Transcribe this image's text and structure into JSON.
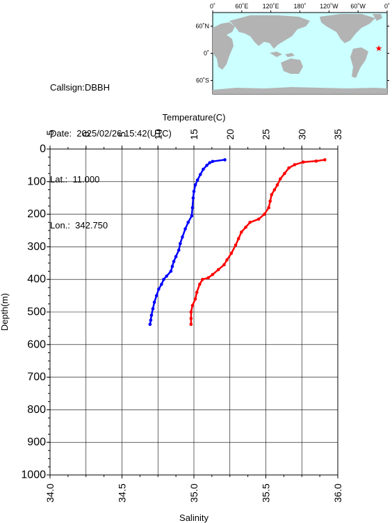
{
  "header": {
    "callsign": "Callsign:DBBH",
    "date": "Date:  2025/02/26 15:42(UTC)",
    "lat": "Lat.:  11.000",
    "lon": "Lon.:  342.750"
  },
  "map": {
    "lon_ticks": [
      "0˚",
      "60˚E",
      "120˚E",
      "180˚",
      "120˚W",
      "60˚W",
      "0˚"
    ],
    "lat_ticks": [
      "60˚N",
      "0˚",
      "60˚S"
    ],
    "ocean_color": "#ccffff",
    "land_color": "#b3b3b3",
    "marker_color": "#ff0000",
    "station": {
      "lon": 342.75,
      "lat": 11.0
    }
  },
  "chart_data": {
    "type": "scatter",
    "top_axis": {
      "label": "Temperature(C)",
      "range": [
        -5,
        35
      ],
      "ticks": [
        "-5",
        "0",
        "5",
        "10",
        "15",
        "20",
        "25",
        "30",
        "35"
      ]
    },
    "bottom_axis": {
      "label": "Salinity",
      "range": [
        34.0,
        36.0
      ],
      "ticks": [
        "34.0",
        "34.5",
        "35.0",
        "35.5",
        "36.0"
      ]
    },
    "left_axis": {
      "label": "Depth(m)",
      "range": [
        0,
        1000
      ],
      "inverted": true,
      "ticks": [
        "0",
        "100",
        "200",
        "300",
        "400",
        "500",
        "600",
        "700",
        "800",
        "900",
        "1000"
      ]
    },
    "grid": true,
    "series": [
      {
        "color": "#0000ff",
        "axis": "temperature",
        "points": [
          [
            19.3,
            33
          ],
          [
            17.6,
            38
          ],
          [
            17.2,
            42
          ],
          [
            16.8,
            50
          ],
          [
            16.3,
            62
          ],
          [
            15.9,
            78
          ],
          [
            15.5,
            95
          ],
          [
            15.2,
            110
          ],
          [
            15.0,
            130
          ],
          [
            14.9,
            150
          ],
          [
            14.8,
            180
          ],
          [
            14.7,
            205
          ],
          [
            14.2,
            225
          ],
          [
            13.8,
            245
          ],
          [
            13.4,
            270
          ],
          [
            13.1,
            290
          ],
          [
            12.9,
            310
          ],
          [
            12.5,
            330
          ],
          [
            12.2,
            345
          ],
          [
            12.0,
            360
          ],
          [
            11.8,
            375
          ],
          [
            11.2,
            390
          ],
          [
            10.8,
            400
          ],
          [
            10.5,
            415
          ],
          [
            10.1,
            430
          ],
          [
            9.8,
            450
          ],
          [
            9.5,
            470
          ],
          [
            9.3,
            490
          ],
          [
            9.1,
            510
          ],
          [
            9.0,
            525
          ],
          [
            8.9,
            538
          ]
        ]
      },
      {
        "color": "#ff0000",
        "axis": "salinity",
        "points": [
          [
            35.91,
            33
          ],
          [
            35.85,
            37
          ],
          [
            35.76,
            40
          ],
          [
            35.7,
            48
          ],
          [
            35.66,
            58
          ],
          [
            35.63,
            75
          ],
          [
            35.6,
            92
          ],
          [
            35.58,
            110
          ],
          [
            35.56,
            125
          ],
          [
            35.54,
            140
          ],
          [
            35.53,
            160
          ],
          [
            35.52,
            180
          ],
          [
            35.49,
            200
          ],
          [
            35.45,
            215
          ],
          [
            35.39,
            225
          ],
          [
            35.36,
            240
          ],
          [
            35.33,
            255
          ],
          [
            35.31,
            275
          ],
          [
            35.29,
            295
          ],
          [
            35.26,
            320
          ],
          [
            35.23,
            340
          ],
          [
            35.21,
            355
          ],
          [
            35.17,
            370
          ],
          [
            35.13,
            385
          ],
          [
            35.1,
            395
          ],
          [
            35.06,
            400
          ],
          [
            35.04,
            415
          ],
          [
            35.02,
            440
          ],
          [
            35.01,
            460
          ],
          [
            34.99,
            480
          ],
          [
            34.98,
            500
          ],
          [
            34.98,
            520
          ],
          [
            34.98,
            538
          ]
        ]
      }
    ]
  }
}
